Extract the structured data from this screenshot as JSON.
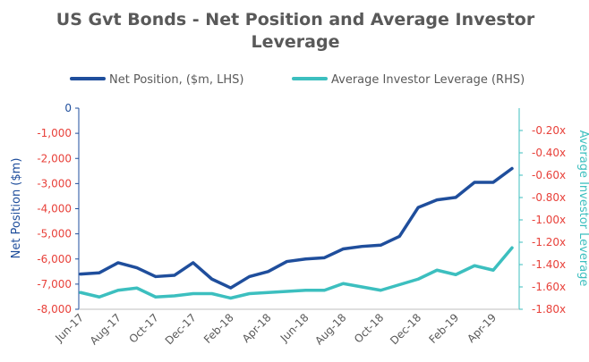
{
  "chart_data": {
    "type": "line",
    "title": "US Gvt Bonds - Net Position and Average Investor",
    "title_line2": "Leverage",
    "ylabel": "Net Position ($m)",
    "y2label": "Average Investor Leverage",
    "categories": [
      "Jun-17",
      null,
      "Aug-17",
      null,
      "Oct-17",
      null,
      "Dec-17",
      null,
      "Feb-18",
      null,
      "Apr-18",
      null,
      "Jun-18",
      null,
      "Aug-18",
      null,
      "Oct-18",
      null,
      "Dec-18",
      null,
      "Feb-19",
      null,
      "Apr-19",
      null
    ],
    "series": [
      {
        "name": "Net Position, ($m, LHS)",
        "color": "#1f4e9c",
        "axis": "y",
        "values": [
          -6600,
          -6550,
          -6150,
          -6350,
          -6700,
          -6650,
          -6150,
          -6800,
          -7150,
          -6700,
          -6500,
          -6100,
          -6000,
          -5950,
          -5600,
          -5500,
          -5450,
          -5100,
          -3950,
          -3650,
          -3550,
          -2950,
          -2950,
          -2400
        ]
      },
      {
        "name": "Average Investor Leverage (RHS)",
        "color": "#3cbfbf",
        "axis": "y2",
        "values": [
          -1.65,
          -1.69,
          -1.63,
          -1.61,
          -1.69,
          -1.68,
          -1.66,
          -1.66,
          -1.7,
          -1.66,
          -1.65,
          -1.64,
          -1.63,
          -1.63,
          -1.57,
          -1.6,
          -1.63,
          -1.58,
          -1.53,
          -1.45,
          -1.49,
          -1.41,
          -1.45,
          -1.25
        ]
      }
    ],
    "ylim": [
      -8000,
      0
    ],
    "yticks": [
      0,
      {
        "value": -1000,
        "label": "-1,000"
      },
      {
        "value": -2000,
        "label": "-2,000"
      },
      {
        "value": -3000,
        "label": "-3,000"
      },
      {
        "value": -4000,
        "label": "-4,000"
      },
      {
        "value": -5000,
        "label": "-5,000"
      },
      {
        "value": -6000,
        "label": "-6,000"
      },
      {
        "value": -7000,
        "label": "-7,000"
      },
      {
        "value": -8000,
        "label": "-8,000"
      }
    ],
    "y2lim": [
      -1.8,
      0
    ],
    "y2ticks": [
      {
        "value": -0.2,
        "label": "-0.20x"
      },
      {
        "value": -0.4,
        "label": "-0.40x"
      },
      {
        "value": -0.6,
        "label": "-0.60x"
      },
      {
        "value": -0.8,
        "label": "-0.80x"
      },
      {
        "value": -1.0,
        "label": "-1.00x"
      },
      {
        "value": -1.2,
        "label": "-1.20x"
      },
      {
        "value": -1.4,
        "label": "-1.40x"
      },
      {
        "value": -1.6,
        "label": "-1.60x"
      },
      {
        "value": -1.8,
        "label": "-1.80x"
      }
    ],
    "negative_tick_color": "#e8413a",
    "grid": false,
    "legend": "top"
  }
}
